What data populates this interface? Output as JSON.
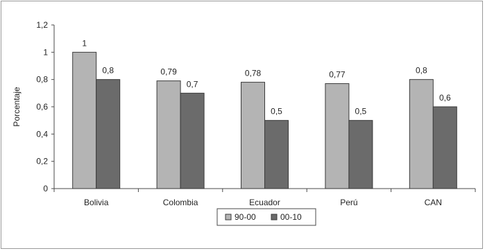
{
  "chart_data": {
    "type": "bar",
    "ylabel": "Porcentaje",
    "xlabel": "",
    "title": "",
    "categories": [
      "Bolivia",
      "Colombia",
      "Ecuador",
      "Perú",
      "CAN"
    ],
    "series": [
      {
        "name": "90-00",
        "values": [
          1,
          0.79,
          0.78,
          0.77,
          0.8
        ],
        "labels": [
          "1",
          "0,79",
          "0,78",
          "0,77",
          "0,8"
        ],
        "color": "#b4b4b4"
      },
      {
        "name": "00-10",
        "values": [
          0.8,
          0.7,
          0.5,
          0.5,
          0.6
        ],
        "labels": [
          "0,8",
          "0,7",
          "0,5",
          "0,5",
          "0,6"
        ],
        "color": "#6b6b6b"
      }
    ],
    "ylim": [
      0,
      1.2
    ],
    "yticks": [
      0,
      0.2,
      0.4,
      0.6,
      0.8,
      1,
      1.2
    ],
    "ytick_labels": [
      "0",
      "0,2",
      "0,4",
      "0,6",
      "0,8",
      "1",
      "1,2"
    ],
    "legend_position": "bottom",
    "grid": false
  }
}
